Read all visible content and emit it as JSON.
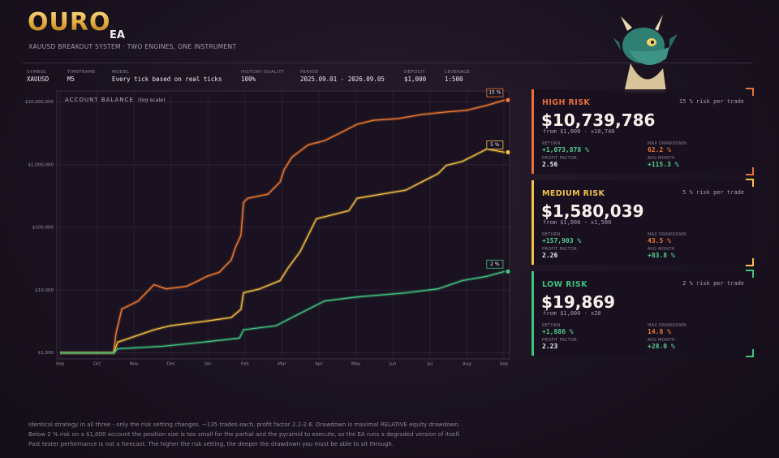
{
  "header": {
    "logo": "OURO",
    "logo_suffix": "EA",
    "subtitle": "XAUUSD BREAKOUT SYSTEM · TWO ENGINES, ONE INSTRUMENT"
  },
  "meta": [
    {
      "label": "SYMBOL",
      "value": "XAUUSD"
    },
    {
      "label": "TIMEFRAME",
      "value": "M5"
    },
    {
      "label": "MODEL",
      "value": "Every tick based on real ticks"
    },
    {
      "label": "HISTORY QUALITY",
      "value": "100%"
    },
    {
      "label": "PERIOD",
      "value": "2025.09.01 - 2026.09.05"
    },
    {
      "label": "DEPOSIT",
      "value": "$1,000"
    },
    {
      "label": "LEVERAGE",
      "value": "1:500"
    }
  ],
  "chart_data": {
    "type": "line",
    "title": "ACCOUNT BALANCE",
    "subtitle": "(log scale)",
    "yscale": "log",
    "grid": true,
    "xlim": [
      0,
      12.1
    ],
    "xticks": [
      {
        "value": 0,
        "label": "Sep"
      },
      {
        "value": 1,
        "label": "Oct"
      },
      {
        "value": 2,
        "label": "Nov"
      },
      {
        "value": 3,
        "label": "Dec"
      },
      {
        "value": 4,
        "label": "Jan"
      },
      {
        "value": 5,
        "label": "Feb"
      },
      {
        "value": 6,
        "label": "Mar"
      },
      {
        "value": 7,
        "label": "Apr"
      },
      {
        "value": 8,
        "label": "May"
      },
      {
        "value": 9,
        "label": "Jun"
      },
      {
        "value": 10,
        "label": "Jul"
      },
      {
        "value": 11,
        "label": "Aug"
      },
      {
        "value": 12,
        "label": "Sep"
      }
    ],
    "ylim": [
      800,
      15000000
    ],
    "yticks": [
      {
        "value": 1000,
        "label": "$1,000"
      },
      {
        "value": 10000,
        "label": "$10,000"
      },
      {
        "value": 100000,
        "label": "$100,000"
      },
      {
        "value": 1000000,
        "label": "$1,000,000"
      },
      {
        "value": 10000000,
        "label": "$10,000,000"
      }
    ],
    "series": [
      {
        "name": "15 %",
        "color": "#f07a30",
        "x": [
          0,
          1.45,
          1.51,
          1.67,
          1.89,
          2.11,
          2.54,
          2.87,
          3.42,
          3.75,
          3.97,
          4.3,
          4.63,
          4.74,
          4.89,
          4.96,
          5.07,
          5.62,
          5.95,
          6.06,
          6.27,
          6.71,
          7.15,
          7.59,
          8.03,
          8.47,
          9.13,
          9.78,
          10.44,
          10.99,
          11.54,
          12.02
        ],
        "values": [
          1000,
          1000,
          2000,
          5000,
          5750,
          6700,
          12200,
          10500,
          11500,
          14200,
          16600,
          19200,
          30300,
          47600,
          74800,
          250000,
          291000,
          339000,
          532000,
          837000,
          1320000,
          2070000,
          2410000,
          3250000,
          4400000,
          5120000,
          5430000,
          6320000,
          6920000,
          7350000,
          8810000,
          10739786
        ]
      },
      {
        "name": "5 %",
        "color": "#f5c040",
        "x": [
          0,
          1.45,
          1.56,
          1.89,
          2.54,
          2.98,
          3.86,
          4.63,
          4.89,
          4.96,
          5.4,
          5.95,
          6.16,
          6.49,
          6.71,
          6.93,
          7.81,
          8.03,
          8.69,
          9.35,
          9.78,
          10.22,
          10.44,
          10.88,
          11.32,
          11.54,
          12.02
        ],
        "values": [
          1000,
          1000,
          1480,
          1720,
          2330,
          2710,
          3150,
          3660,
          4950,
          9060,
          10500,
          14200,
          22400,
          40900,
          74800,
          137000,
          185000,
          291000,
          339000,
          394000,
          532000,
          719000,
          973000,
          1130000,
          1530000,
          1780000,
          1580039
        ]
      },
      {
        "name": "2 %",
        "color": "#3fc47f",
        "x": [
          0,
          1.45,
          1.56,
          2.76,
          3.86,
          4.85,
          4.96,
          5.84,
          6.49,
          7.15,
          8.03,
          9.35,
          10.22,
          10.88,
          11.54,
          12.02
        ],
        "values": [
          1000,
          1000,
          1160,
          1270,
          1480,
          1720,
          2330,
          2710,
          4260,
          6700,
          7780,
          9060,
          10500,
          14200,
          16600,
          19869
        ]
      }
    ]
  },
  "cards": [
    {
      "title": "HIGH RISK",
      "note": "15 % risk per trade",
      "balance": "$10,739,786",
      "from": "from $1,000 · x10,740",
      "color": "#e8703a",
      "stats": [
        {
          "label": "RETURN",
          "value": "+1,073,878 %"
        },
        {
          "label": "MAX DRAWDOWN",
          "value": "62.2 %"
        },
        {
          "label": "PROFIT FACTOR",
          "value": "2.56"
        },
        {
          "label": "AVG MONTH",
          "value": "+115.3 %"
        }
      ]
    },
    {
      "title": "MEDIUM RISK",
      "note": "5 % risk per trade",
      "balance": "$1,580,039",
      "from": "from $1,000 · x1,580",
      "color": "#f5c04a",
      "stats": [
        {
          "label": "RETURN",
          "value": "+157,903 %"
        },
        {
          "label": "MAX DRAWDOWN",
          "value": "43.5 %"
        },
        {
          "label": "PROFIT FACTOR",
          "value": "2.26"
        },
        {
          "label": "AVG MONTH",
          "value": "+83.8 %"
        }
      ]
    },
    {
      "title": "LOW RISK",
      "note": "2 % risk per trade",
      "balance": "$19,869",
      "from": "from $1,000 · x20",
      "color": "#3fc47f",
      "stats": [
        {
          "label": "RETURN",
          "value": "+1,886 %"
        },
        {
          "label": "MAX DRAWDOWN",
          "value": "14.8 %"
        },
        {
          "label": "PROFIT FACTOR",
          "value": "2.23"
        },
        {
          "label": "AVG MONTH",
          "value": "+28.0 %"
        }
      ]
    }
  ],
  "footer": [
    "Identical strategy in all three - only the risk setting changes. ~135 trades each, profit factor 2.2-2.6. Drawdown is maximal RELATIVE equity drawdown.",
    "Below 2 % risk on a $1,000 account the position size is too small for the partial and the pyramid to execute, so the EA runs a degraded version of itself.",
    "Past tester performance is not a forecast. The higher the risk setting, the deeper the drawdown you must be able to sit through."
  ]
}
